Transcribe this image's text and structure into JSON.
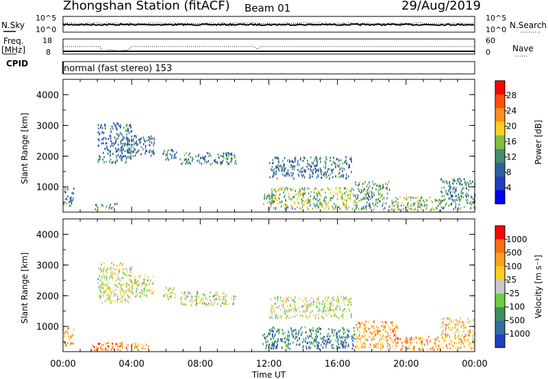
{
  "header": {
    "station": "Zhongshan Station (fitACF)",
    "beam": "Beam 01",
    "date": "29/Aug/2019"
  },
  "left_labels": {
    "nsky": "N.Sky",
    "freq_line1": "Freq.",
    "freq_line2": "[MHz]",
    "cpid": "CPID"
  },
  "right_labels": {
    "nsearch": "N.Search",
    "nave": "Nave"
  },
  "mode_text": "normal (fast stereo) 153",
  "top_axes": {
    "noise_left": [
      "10^5",
      "10^0"
    ],
    "noise_right": [
      "10^5",
      "10^0"
    ],
    "freq_left": [
      "18",
      "8"
    ],
    "freq_right": [
      "60",
      "0"
    ]
  },
  "chart_data": [
    {
      "type": "heatmap",
      "name": "power",
      "xlabel": "Time UT",
      "ylabel": "Slant Range [km]",
      "xlim": [
        0,
        24
      ],
      "ylim": [
        180,
        4500
      ],
      "x_ticks": [
        "00:00",
        "04:00",
        "08:00",
        "12:00",
        "16:00",
        "20:00",
        "00:00"
      ],
      "y_ticks": [
        "1000",
        "2000",
        "3000",
        "4000"
      ],
      "colorbar": {
        "label": "Power [dB]",
        "ticks": [
          "4",
          "8",
          "12",
          "16",
          "20",
          "24",
          "28"
        ],
        "colors": [
          "#0000ff",
          "#1f3fbf",
          "#2f5f9f",
          "#3f8f6f",
          "#7fbf3f",
          "#ffcf1f",
          "#ff8f1f",
          "#ff4f10",
          "#ff0000"
        ]
      },
      "regions": [
        {
          "t0": 0.0,
          "t1": 0.6,
          "r0": 400,
          "r1": 1000,
          "level": 0.35
        },
        {
          "t0": 1.8,
          "t1": 3.2,
          "r0": 300,
          "r1": 500,
          "level": 0.45
        },
        {
          "t0": 2.0,
          "t1": 4.0,
          "r0": 1800,
          "r1": 3100,
          "level": 0.3
        },
        {
          "t0": 3.8,
          "t1": 5.3,
          "r0": 2000,
          "r1": 2700,
          "level": 0.3
        },
        {
          "t0": 5.8,
          "t1": 6.6,
          "r0": 1900,
          "r1": 2300,
          "level": 0.3
        },
        {
          "t0": 6.8,
          "t1": 10.1,
          "r0": 1750,
          "r1": 2150,
          "level": 0.35
        },
        {
          "t0": 11.6,
          "t1": 12.4,
          "r0": 300,
          "r1": 800,
          "level": 0.45
        },
        {
          "t0": 12.0,
          "t1": 16.8,
          "r0": 1300,
          "r1": 2000,
          "level": 0.3
        },
        {
          "t0": 12.0,
          "t1": 17.0,
          "r0": 300,
          "r1": 1000,
          "level": 0.5
        },
        {
          "t0": 17.0,
          "t1": 19.0,
          "r0": 300,
          "r1": 1200,
          "level": 0.4
        },
        {
          "t0": 19.0,
          "t1": 22.0,
          "r0": 250,
          "r1": 700,
          "level": 0.45
        },
        {
          "t0": 22.0,
          "t1": 24.0,
          "r0": 300,
          "r1": 1300,
          "level": 0.35
        }
      ]
    },
    {
      "type": "heatmap",
      "name": "velocity",
      "xlabel": "Time UT",
      "ylabel": "Slant Range [km]",
      "xlim": [
        0,
        24
      ],
      "ylim": [
        180,
        4500
      ],
      "x_ticks": [
        "00:00",
        "04:00",
        "08:00",
        "12:00",
        "16:00",
        "20:00",
        "00:00"
      ],
      "y_ticks": [
        "1000",
        "2000",
        "3000",
        "4000"
      ],
      "colorbar": {
        "label": "Velocity [m s⁻¹]",
        "ticks": [
          "1000",
          "500",
          "100",
          "25",
          "-25",
          "-100",
          "-500",
          "-1000"
        ],
        "colors": [
          "#1f3fbf",
          "#2f6f9f",
          "#3f8f5f",
          "#6fcf3f",
          "#c8c8c8",
          "#ffcf1f",
          "#ff9f1f",
          "#ff6f10",
          "#ff0000"
        ]
      },
      "regions": [
        {
          "t0": 0.0,
          "t1": 0.6,
          "r0": 400,
          "r1": 1000,
          "level": 0.75
        },
        {
          "t0": 1.5,
          "t1": 5.0,
          "r0": 250,
          "r1": 500,
          "level": 0.75
        },
        {
          "t0": 2.0,
          "t1": 4.0,
          "r0": 1800,
          "r1": 3100,
          "level": 0.5
        },
        {
          "t0": 3.8,
          "t1": 5.3,
          "r0": 2000,
          "r1": 2700,
          "level": 0.5
        },
        {
          "t0": 5.8,
          "t1": 6.6,
          "r0": 1900,
          "r1": 2300,
          "level": 0.5
        },
        {
          "t0": 6.8,
          "t1": 10.1,
          "r0": 1700,
          "r1": 2150,
          "level": 0.48
        },
        {
          "t0": 11.6,
          "t1": 12.4,
          "r0": 300,
          "r1": 800,
          "level": 0.2
        },
        {
          "t0": 12.0,
          "t1": 16.8,
          "r0": 1300,
          "r1": 2000,
          "level": 0.5
        },
        {
          "t0": 12.0,
          "t1": 17.0,
          "r0": 300,
          "r1": 1000,
          "level": 0.22
        },
        {
          "t0": 17.0,
          "t1": 19.5,
          "r0": 300,
          "r1": 1200,
          "level": 0.72
        },
        {
          "t0": 19.5,
          "t1": 22.0,
          "r0": 250,
          "r1": 700,
          "level": 0.72
        },
        {
          "t0": 22.0,
          "t1": 24.0,
          "r0": 300,
          "r1": 1300,
          "level": 0.65
        }
      ]
    }
  ]
}
